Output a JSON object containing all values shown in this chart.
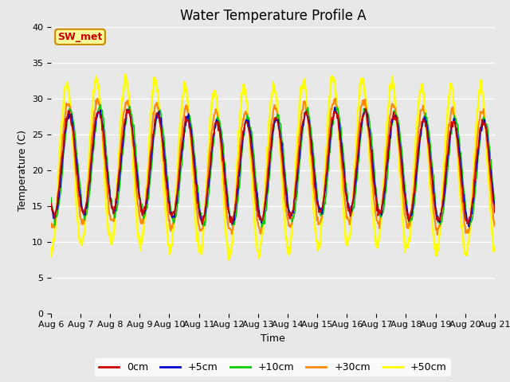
{
  "title": "Water Temperature Profile A",
  "xlabel": "Time",
  "ylabel": "Temperature (C)",
  "ylim": [
    0,
    40
  ],
  "x_tick_labels": [
    "Aug 6",
    "Aug 7",
    "Aug 8",
    "Aug 9",
    "Aug 10",
    "Aug 11",
    "Aug 12",
    "Aug 13",
    "Aug 14",
    "Aug 15",
    "Aug 16",
    "Aug 17",
    "Aug 18",
    "Aug 19",
    "Aug 20",
    "Aug 21"
  ],
  "legend_labels": [
    "0cm",
    "+5cm",
    "+10cm",
    "+30cm",
    "+50cm"
  ],
  "line_colors": [
    "#cc0000",
    "#0000cc",
    "#00cc00",
    "#ff8800",
    "#ffff00"
  ],
  "bg_color": "#e8e8e8",
  "plot_bg_color": "#e8e8e8",
  "legend_bg": "#ffffff",
  "annotation_text": "SW_met",
  "annotation_facecolor": "#ffff99",
  "annotation_edgecolor": "#cc8800",
  "annotation_textcolor": "#cc0000",
  "title_fontsize": 12,
  "label_fontsize": 9,
  "tick_fontsize": 8
}
